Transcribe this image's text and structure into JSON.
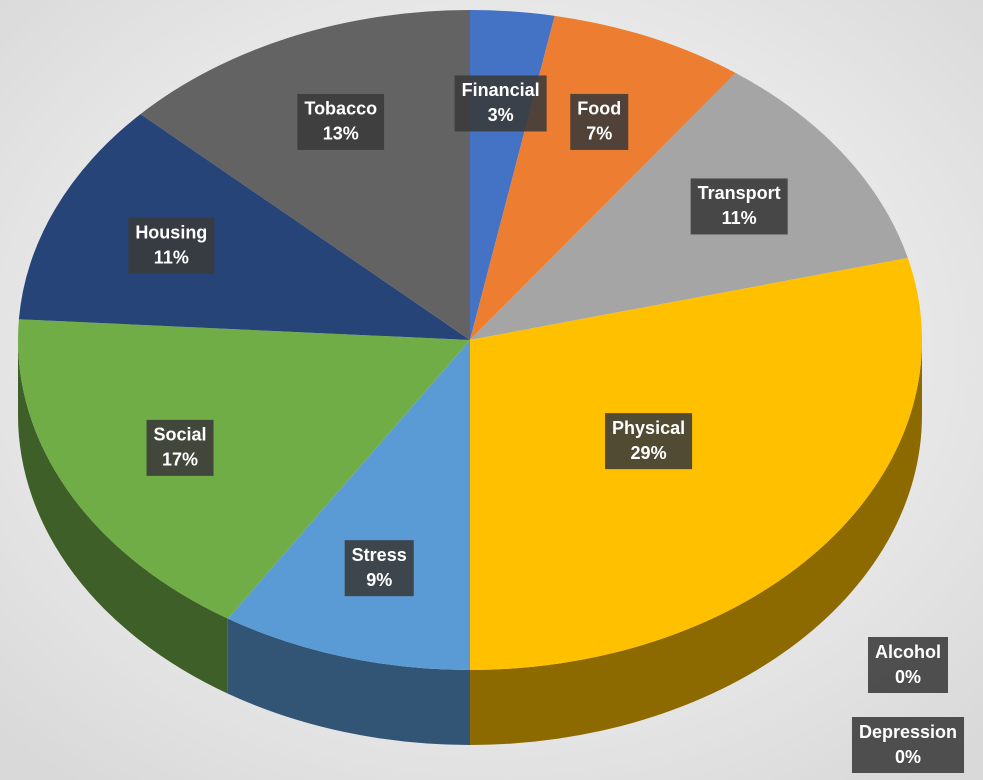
{
  "chart_data": {
    "type": "pie",
    "categories": [
      "Financial",
      "Food",
      "Transport",
      "Physical",
      "Alcohol",
      "Depression",
      "Stress",
      "Social",
      "Housing",
      "Tobacco"
    ],
    "values": [
      3,
      7,
      11,
      29,
      0,
      0,
      9,
      17,
      11,
      13
    ],
    "value_labels": [
      "3%",
      "7%",
      "11%",
      "29%",
      "0%",
      "0%",
      "9%",
      "17%",
      "11%",
      "13%"
    ],
    "colors": [
      "#4472c4",
      "#ed7d31",
      "#a5a5a5",
      "#ffc000",
      "#5b9bd5",
      "#70ad47",
      "#5b9bd5",
      "#70ad47",
      "#264478",
      "#636363"
    ]
  }
}
